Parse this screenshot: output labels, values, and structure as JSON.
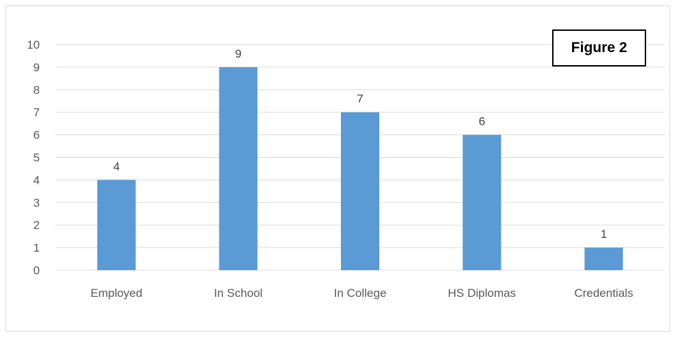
{
  "chart_data": {
    "type": "bar",
    "title": "",
    "xlabel": "",
    "ylabel": "",
    "categories": [
      "Employed",
      "In School",
      "In College",
      "HS Diplomas",
      "Credentials"
    ],
    "values": [
      4,
      9,
      7,
      6,
      1
    ],
    "data_labels": [
      "4",
      "9",
      "7",
      "6",
      "1"
    ],
    "ylim": [
      0,
      10
    ],
    "yticks": [
      "0",
      "1",
      "2",
      "3",
      "4",
      "5",
      "6",
      "7",
      "8",
      "9",
      "10"
    ],
    "grid": true,
    "legend": "none",
    "annotation": "Figure 2",
    "colors": {
      "bar": "#5b9bd5",
      "grid": "#d9d9d9",
      "tick_text": "#595959",
      "label_text": "#404040",
      "annotation_border": "#000000"
    }
  }
}
